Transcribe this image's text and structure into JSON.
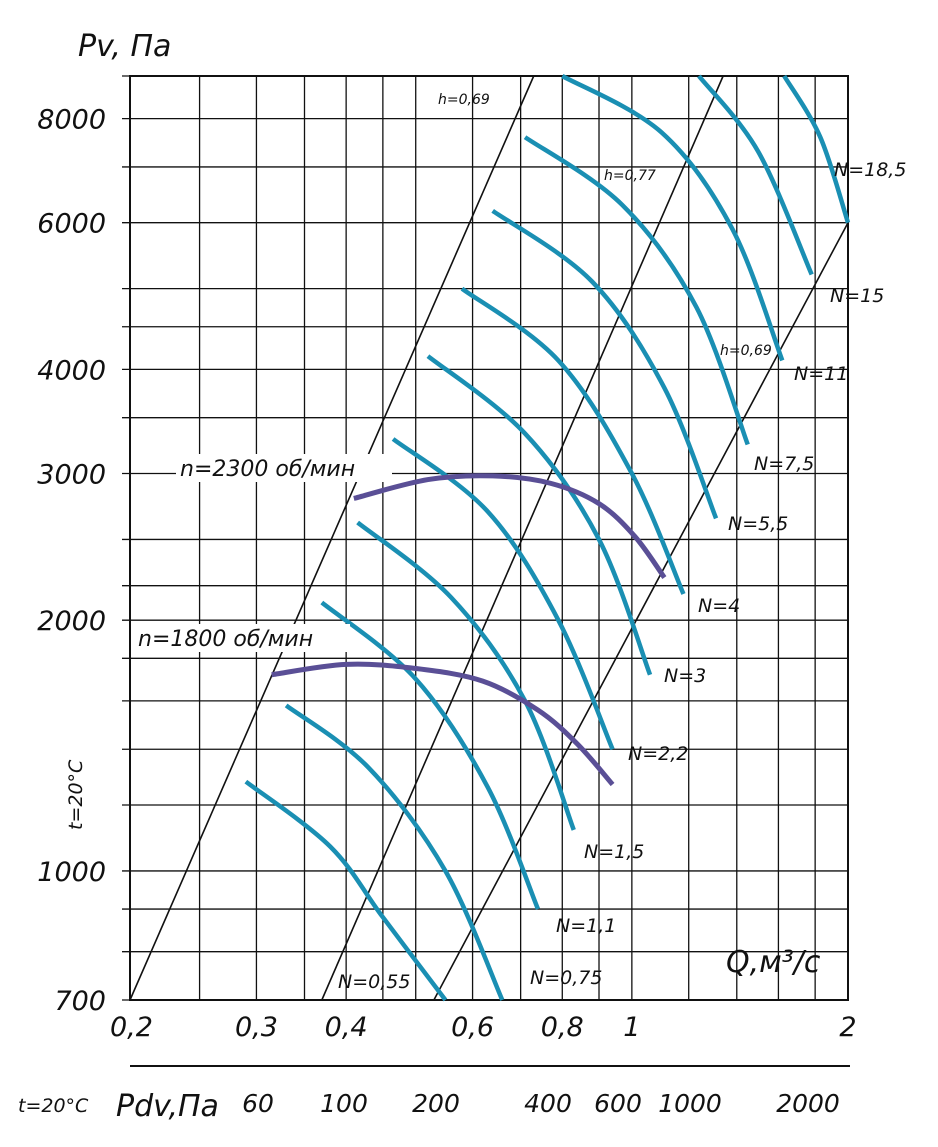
{
  "chart_data": {
    "type": "line",
    "scale": "log-log",
    "xlabel": "Q,м³/с",
    "ylabel": "Pv, Па",
    "xlim": [
      0.2,
      2
    ],
    "ylim": [
      700,
      9000
    ],
    "grid": true,
    "x_ticks": [
      "0,2",
      "0,3",
      "0,4",
      "0,6",
      "0,8",
      "1",
      "2"
    ],
    "y_ticks": [
      "700",
      "1000",
      "2000",
      "3000",
      "4000",
      "6000",
      "8000"
    ],
    "temperature_label": "t=20°C",
    "pdv_axis": {
      "label_t": "t=20°C",
      "label": "Pdv,Па",
      "ticks": [
        "60",
        "100",
        "200",
        "400",
        "600",
        "1000",
        "2000"
      ]
    },
    "efficiency_lines": [
      {
        "label": "h=0,69",
        "points": [
          [
            0.2,
            700
          ],
          [
            0.73,
            9000
          ]
        ]
      },
      {
        "label": "h=0,77",
        "points": [
          [
            0.37,
            700
          ],
          [
            1.34,
            9000
          ]
        ]
      },
      {
        "label": "h=0,69",
        "points": [
          [
            0.53,
            700
          ],
          [
            2.0,
            6000
          ]
        ]
      }
    ],
    "power_curves": [
      {
        "label": "N=0,55",
        "points": [
          [
            0.29,
            1280
          ],
          [
            0.38,
            1070
          ],
          [
            0.45,
            880
          ],
          [
            0.55,
            700
          ]
        ]
      },
      {
        "label": "N=0,75",
        "points": [
          [
            0.33,
            1580
          ],
          [
            0.43,
            1330
          ],
          [
            0.55,
            1000
          ],
          [
            0.66,
            700
          ]
        ]
      },
      {
        "label": "N=1,1",
        "points": [
          [
            0.37,
            2100
          ],
          [
            0.5,
            1700
          ],
          [
            0.63,
            1260
          ],
          [
            0.74,
            900
          ]
        ]
      },
      {
        "label": "N=1,5",
        "points": [
          [
            0.415,
            2620
          ],
          [
            0.56,
            2130
          ],
          [
            0.71,
            1600
          ],
          [
            0.83,
            1120
          ]
        ]
      },
      {
        "label": "N=2,2",
        "points": [
          [
            0.465,
            3300
          ],
          [
            0.63,
            2700
          ],
          [
            0.79,
            2000
          ],
          [
            0.94,
            1400
          ]
        ]
      },
      {
        "label": "N=3",
        "points": [
          [
            0.52,
            4150
          ],
          [
            0.71,
            3350
          ],
          [
            0.9,
            2500
          ],
          [
            1.06,
            1720
          ]
        ]
      },
      {
        "label": "N=4",
        "points": [
          [
            0.58,
            5000
          ],
          [
            0.79,
            4100
          ],
          [
            1.0,
            3000
          ],
          [
            1.18,
            2150
          ]
        ]
      },
      {
        "label": "N=5,5",
        "points": [
          [
            0.64,
            6200
          ],
          [
            0.88,
            5100
          ],
          [
            1.11,
            3800
          ],
          [
            1.31,
            2650
          ]
        ]
      },
      {
        "label": "N=7,5",
        "points": [
          [
            0.71,
            7600
          ],
          [
            0.97,
            6300
          ],
          [
            1.23,
            4750
          ],
          [
            1.45,
            3250
          ]
        ]
      },
      {
        "label": "N=11",
        "points": [
          [
            0.8,
            9000
          ],
          [
            1.1,
            7700
          ],
          [
            1.38,
            5900
          ],
          [
            1.62,
            4100
          ]
        ]
      },
      {
        "label": "N=15",
        "points": [
          [
            1.24,
            9000
          ],
          [
            1.5,
            7300
          ],
          [
            1.78,
            5200
          ]
        ]
      },
      {
        "label": "N=18,5",
        "points": [
          [
            1.63,
            9000
          ],
          [
            1.83,
            7600
          ],
          [
            2.0,
            6000
          ]
        ]
      }
    ],
    "speed_curves": [
      {
        "label": "n=1800 об/мин",
        "points": [
          [
            0.315,
            1720
          ],
          [
            0.4,
            1770
          ],
          [
            0.5,
            1750
          ],
          [
            0.62,
            1690
          ],
          [
            0.74,
            1560
          ],
          [
            0.84,
            1420
          ],
          [
            0.94,
            1270
          ]
        ]
      },
      {
        "label": "n=2300 об/мин",
        "points": [
          [
            0.41,
            2800
          ],
          [
            0.52,
            2950
          ],
          [
            0.64,
            2980
          ],
          [
            0.77,
            2920
          ],
          [
            0.9,
            2760
          ],
          [
            1.01,
            2520
          ],
          [
            1.11,
            2250
          ]
        ]
      }
    ],
    "colors": {
      "power_curve": "#1a8fb3",
      "speed_curve": "#5a4f96",
      "grid": "#111111",
      "efficiency_line": "#111111"
    }
  }
}
